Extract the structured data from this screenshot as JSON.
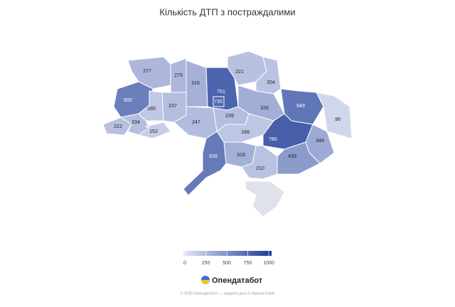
{
  "chart_data": {
    "type": "choropleth",
    "title": "Кількість ДТП з постраждалими",
    "values": [
      277,
      275,
      316,
      751,
      735,
      221,
      204,
      600,
      180,
      237,
      239,
      326,
      649,
      96,
      222,
      234,
      152,
      247,
      188,
      780,
      348,
      628,
      318,
      439,
      210
    ],
    "colorlim": [
      0,
      1000
    ],
    "colorticks": [
      0,
      250,
      500,
      750,
      1000
    ],
    "colors": [
      "#e3e7f5",
      "#1b3996"
    ]
  },
  "brand": "Опендатабот",
  "footer": "© 2020 Опендатабот — відкриті дані © Natural Earth"
}
